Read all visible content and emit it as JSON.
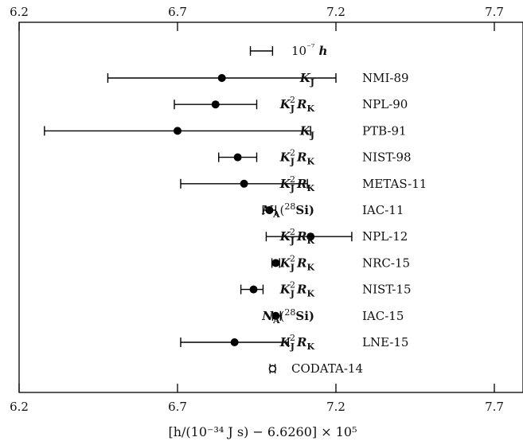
{
  "chart_data": {
    "type": "scatter",
    "subtype": "horizontal error bars",
    "title": "",
    "xlabel": "[h/(10⁻³⁴ J s) − 6.6260] × 10⁵",
    "xlim": [
      6.2,
      7.8
    ],
    "x_ticks": [
      6.2,
      6.7,
      7.2,
      7.7
    ],
    "x_tick_labels": [
      "6.2",
      "6.7",
      "7.2",
      "7.7"
    ],
    "ticks_on_top_and_bottom": true,
    "grid": false,
    "scale_bar": {
      "x_low": 6.93,
      "x_high": 7.0,
      "label": "10⁻⁷ h"
    },
    "points": [
      {
        "method": "KJ",
        "method_display": "K_J",
        "method_main": "K",
        "method_sub": "J",
        "method_sup": "",
        "method_tail": "",
        "lab": "NMI-89",
        "value": 6.84,
        "low": 6.48,
        "high": 7.2,
        "marker": "filled"
      },
      {
        "method": "KJ2RK",
        "method_display": "K_J² R_K",
        "method_main": "K",
        "method_sub": "J",
        "method_sup": "2",
        "method_tail": "R",
        "method_tail_sub": "K",
        "lab": "NPL-90",
        "value": 6.82,
        "low": 6.69,
        "high": 6.95,
        "marker": "filled"
      },
      {
        "method": "KJ",
        "method_display": "K_J",
        "method_main": "K",
        "method_sub": "J",
        "method_sup": "",
        "method_tail": "",
        "lab": "PTB-91",
        "value": 6.7,
        "low": 6.28,
        "high": 7.12,
        "marker": "filled"
      },
      {
        "method": "KJ2RK",
        "method_display": "K_J² R_K",
        "method_main": "K",
        "method_sub": "J",
        "method_sup": "2",
        "method_tail": "R",
        "method_tail_sub": "K",
        "lab": "NIST-98",
        "value": 6.89,
        "low": 6.83,
        "high": 6.95,
        "marker": "filled"
      },
      {
        "method": "KJ2RK",
        "method_display": "K_J² R_K",
        "method_main": "K",
        "method_sub": "J",
        "method_sup": "2",
        "method_tail": "R",
        "method_tail_sub": "K",
        "lab": "METAS-11",
        "value": 6.91,
        "low": 6.71,
        "high": 7.11,
        "marker": "filled"
      },
      {
        "method": "NA28Si",
        "method_display": "N_A(²⁸Si)",
        "method_main": "N",
        "method_sub": "A",
        "method_sup": "28",
        "method_tail": "Si",
        "lab": "IAC-11",
        "value": 6.99,
        "low": 6.97,
        "high": 7.01,
        "marker": "filled"
      },
      {
        "method": "KJ2RK",
        "method_display": "K_J² R_K",
        "method_main": "K",
        "method_sub": "J",
        "method_sup": "2",
        "method_tail": "R",
        "method_tail_sub": "K",
        "lab": "NPL-12",
        "value": 7.12,
        "low": 6.98,
        "high": 7.25,
        "marker": "filled"
      },
      {
        "method": "KJ2RK",
        "method_display": "K_J² R_K",
        "method_main": "K",
        "method_sub": "J",
        "method_sup": "2",
        "method_tail": "R",
        "method_tail_sub": "K",
        "lab": "NRC-15",
        "value": 7.01,
        "low": 6.998,
        "high": 7.022,
        "marker": "filled"
      },
      {
        "method": "KJ2RK",
        "method_display": "K_J² R_K",
        "method_main": "K",
        "method_sub": "J",
        "method_sup": "2",
        "method_tail": "R",
        "method_tail_sub": "K",
        "lab": "NIST-15",
        "value": 6.94,
        "low": 6.9,
        "high": 6.97,
        "marker": "filled"
      },
      {
        "method": "NA28Si",
        "method_display": "N_A(²⁸Si)",
        "method_main": "N",
        "method_sub": "A",
        "method_sup": "28",
        "method_tail": "Si",
        "lab": "IAC-15",
        "value": 7.01,
        "low": 7.0,
        "high": 7.025,
        "marker": "filled"
      },
      {
        "method": "KJ2RK",
        "method_display": "K_J² R_K",
        "method_main": "K",
        "method_sub": "J",
        "method_sup": "2",
        "method_tail": "R",
        "method_tail_sub": "K",
        "lab": "LNE-15",
        "value": 6.88,
        "low": 6.71,
        "high": 7.05,
        "marker": "filled"
      },
      {
        "method": "",
        "method_display": "",
        "method_main": "",
        "method_sub": "",
        "method_sup": "",
        "method_tail": "",
        "lab": "CODATA-14",
        "value": 7.0,
        "low": 6.992,
        "high": 7.008,
        "marker": "open"
      }
    ]
  }
}
